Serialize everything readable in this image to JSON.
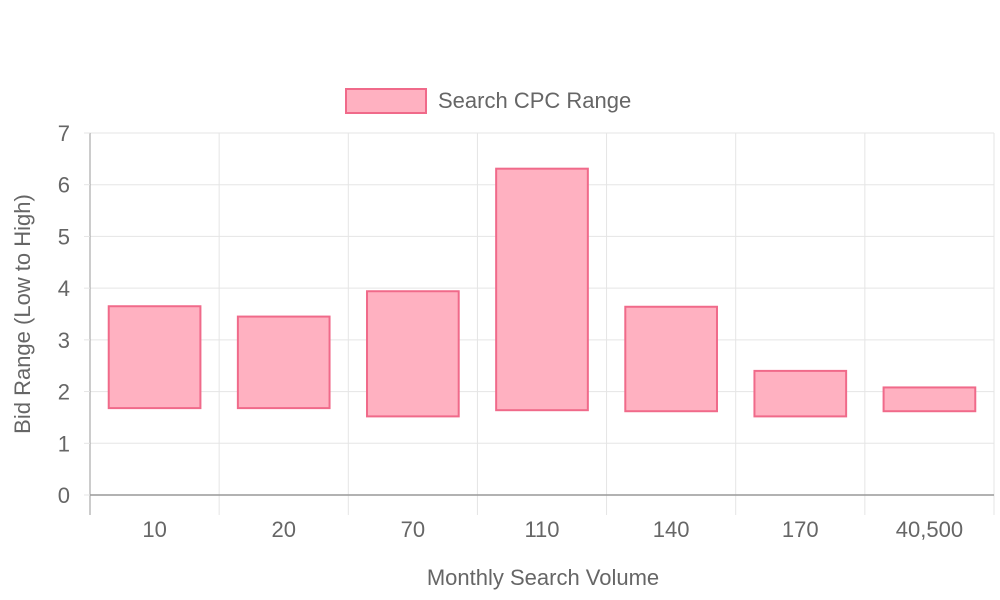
{
  "chart_data": {
    "type": "bar",
    "subtype": "floating-range",
    "categories": [
      "10",
      "20",
      "70",
      "110",
      "140",
      "170",
      "40,500"
    ],
    "series": [
      {
        "name": "Search CPC Range",
        "low": [
          1.68,
          1.68,
          1.52,
          1.64,
          1.62,
          1.52,
          1.62
        ],
        "high": [
          3.65,
          3.45,
          3.94,
          6.31,
          3.64,
          2.4,
          2.08
        ],
        "fill_color": "#ffb1c1",
        "stroke_color": "#f06a8a"
      }
    ],
    "xlabel": "Monthly Search Volume",
    "ylabel": "Bid Range (Low to High)",
    "ylim": [
      0,
      7
    ],
    "yticks": [
      "0",
      "1",
      "2",
      "3",
      "4",
      "5",
      "6",
      "7"
    ],
    "grid": true,
    "legend_position": "top",
    "colors": {
      "grid": "#e5e5e5",
      "axis": "#999999",
      "text": "#666666"
    }
  }
}
